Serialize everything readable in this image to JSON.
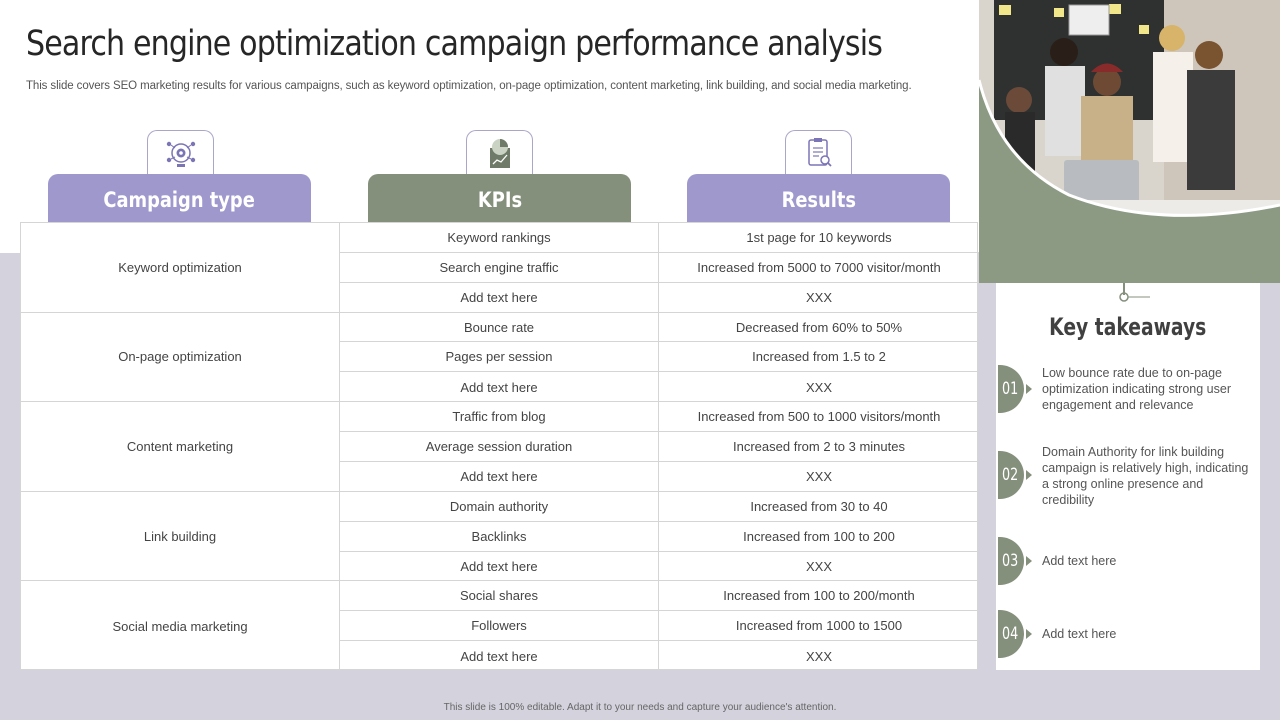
{
  "title": "Search engine optimization campaign performance analysis",
  "subtitle": "This slide covers SEO marketing results for various campaigns, such as keyword optimization, on-page optimization, content marketing, link building, and social media marketing.",
  "headers": {
    "campaign_type": "Campaign type",
    "kpis": "KPIs",
    "results": "Results"
  },
  "icons": {
    "campaign_type": "seo-target-icon",
    "kpis": "pie-chart-report-icon",
    "results": "clipboard-analysis-icon"
  },
  "groups": [
    {
      "campaign": "Keyword optimization",
      "rows": [
        {
          "kpi": "Keyword rankings",
          "result": "1st page for 10 keywords"
        },
        {
          "kpi": "Search engine traffic",
          "result": "Increased from 5000 to 7000 visitor/month"
        },
        {
          "kpi": "Add text here",
          "result": "XXX"
        }
      ]
    },
    {
      "campaign": "On-page optimization",
      "rows": [
        {
          "kpi": "Bounce rate",
          "result": "Decreased from 60% to 50%"
        },
        {
          "kpi": "Pages per session",
          "result": "Increased from 1.5 to 2"
        },
        {
          "kpi": "Add text here",
          "result": "XXX"
        }
      ]
    },
    {
      "campaign": "Content marketing",
      "rows": [
        {
          "kpi": "Traffic from blog",
          "result": "Increased from 500 to 1000 visitors/month"
        },
        {
          "kpi": "Average session duration",
          "result": "Increased from 2 to 3 minutes"
        },
        {
          "kpi": "Add text here",
          "result": "XXX"
        }
      ]
    },
    {
      "campaign": "Link building",
      "rows": [
        {
          "kpi": "Domain authority",
          "result": "Increased from 30 to 40"
        },
        {
          "kpi": "Backlinks",
          "result": "Increased from 100 to 200"
        },
        {
          "kpi": "Add text here",
          "result": "XXX"
        }
      ]
    },
    {
      "campaign": "Social media marketing",
      "rows": [
        {
          "kpi": "Social shares",
          "result": "Increased from 100 to 200/month"
        },
        {
          "kpi": "Followers",
          "result": "Increased from 1000 to 1500"
        },
        {
          "kpi": "Add text here",
          "result": "XXX"
        }
      ]
    }
  ],
  "key_takeaways": {
    "title": "Key takeaways",
    "items": [
      {
        "number": "01",
        "text": "Low bounce rate due to on-page optimization indicating strong user engagement and relevance"
      },
      {
        "number": "02",
        "text": "Domain Authority for link building campaign is relatively high, indicating a strong online presence and credibility"
      },
      {
        "number": "03",
        "text": "Add text here"
      },
      {
        "number": "04",
        "text": "Add text here"
      }
    ]
  },
  "footer": "This slide is 100% editable. Adapt it to your needs and capture your audience's attention.",
  "colors": {
    "purple": "#9e98cc",
    "green": "#84907c",
    "background_lower": "#d3d2dd"
  }
}
